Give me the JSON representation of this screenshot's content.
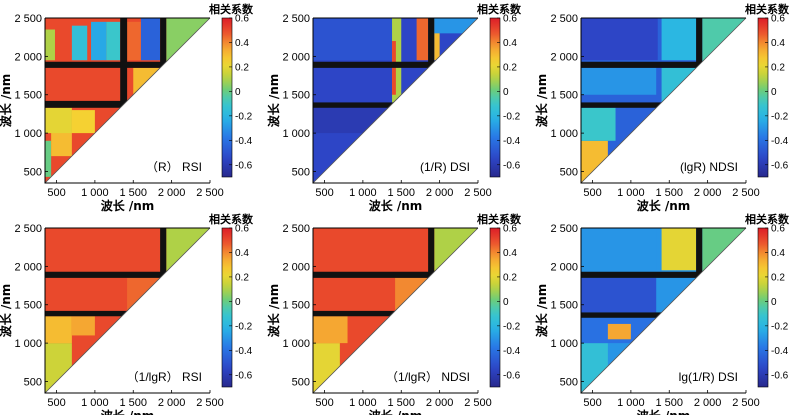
{
  "chart_data": [
    {
      "type": "heatmap",
      "panel_label": "（R） RSI",
      "xlabel": "波长 /nm",
      "ylabel": "波长 /nm",
      "xlim": [
        350,
        2500
      ],
      "ylim": [
        350,
        2500
      ],
      "xticks": [
        "500",
        "1 000",
        "1 500",
        "2 000",
        "2 500"
      ],
      "yticks": [
        "500",
        "1 000",
        "1 500",
        "2 000",
        "2 500"
      ],
      "colorbar": {
        "title": "相关系数",
        "range": [
          -0.7,
          0.6
        ],
        "ticks": [
          "0.6",
          "0.4",
          "0.2",
          "0",
          "-0.2",
          "-0.4",
          "-0.6"
        ]
      },
      "base_value": 0.5,
      "regions": [
        {
          "x": [
            350,
            2500
          ],
          "y": [
            1850,
            1930
          ],
          "value": "black"
        },
        {
          "x": [
            1850,
            1930
          ],
          "y": [
            350,
            2500
          ],
          "value": "black"
        },
        {
          "x": [
            350,
            2500
          ],
          "y": [
            1330,
            1420
          ],
          "value": "black"
        },
        {
          "x": [
            1330,
            1420
          ],
          "y": [
            350,
            2500
          ],
          "value": "black"
        },
        {
          "x": [
            350,
            430
          ],
          "y": [
            430,
            900
          ],
          "value": 0.0
        },
        {
          "x": [
            430,
            700
          ],
          "y": [
            700,
            1300
          ],
          "value": 0.3
        },
        {
          "x": [
            700,
            1000
          ],
          "y": [
            1000,
            1300
          ],
          "value": 0.25
        },
        {
          "x": [
            350,
            700
          ],
          "y": [
            1000,
            1330
          ],
          "value": 0.2
        },
        {
          "x": [
            350,
            700
          ],
          "y": [
            1420,
            1850
          ],
          "value": 0.5
        },
        {
          "x": [
            350,
            480
          ],
          "y": [
            1950,
            2350
          ],
          "value": 0.1
        },
        {
          "x": [
            700,
            900
          ],
          "y": [
            1950,
            2400
          ],
          "value": -0.15
        },
        {
          "x": [
            950,
            1150
          ],
          "y": [
            1950,
            2450
          ],
          "value": -0.25
        },
        {
          "x": [
            1150,
            1330
          ],
          "y": [
            1950,
            2450
          ],
          "value": -0.1
        },
        {
          "x": [
            1420,
            1600
          ],
          "y": [
            1950,
            2450
          ],
          "value": 0.45
        },
        {
          "x": [
            1600,
            1850
          ],
          "y": [
            1950,
            2500
          ],
          "value": -0.45
        },
        {
          "x": [
            1500,
            1850
          ],
          "y": [
            1500,
            1850
          ],
          "value": 0.3
        },
        {
          "x": [
            1930,
            2500
          ],
          "y": [
            1930,
            2500
          ],
          "value": 0.05
        }
      ]
    },
    {
      "type": "heatmap",
      "panel_label": "(1/R) DSI",
      "xlabel": "波长 /nm",
      "ylabel": "波长 /nm",
      "xlim": [
        350,
        2500
      ],
      "ylim": [
        350,
        2500
      ],
      "xticks": [
        "500",
        "1 000",
        "1 500",
        "2 000",
        "2 500"
      ],
      "yticks": [
        "500",
        "1 000",
        "1 500",
        "2 000",
        "2 500"
      ],
      "colorbar": {
        "title": "相关系数",
        "range": [
          -0.7,
          0.6
        ],
        "ticks": [
          "0.6",
          "0.4",
          "0.2",
          "0",
          "-0.2",
          "-0.4",
          "-0.6"
        ]
      },
      "base_value": -0.55,
      "regions": [
        {
          "x": [
            350,
            2500
          ],
          "y": [
            1850,
            1930
          ],
          "value": "black"
        },
        {
          "x": [
            1850,
            1930
          ],
          "y": [
            350,
            2500
          ],
          "value": "black"
        },
        {
          "x": [
            350,
            2500
          ],
          "y": [
            1330,
            1400
          ],
          "value": "black"
        },
        {
          "x": [
            350,
            1400
          ],
          "y": [
            1000,
            1330
          ],
          "value": -0.6
        },
        {
          "x": [
            350,
            1400
          ],
          "y": [
            1950,
            2500
          ],
          "value": -0.5
        },
        {
          "x": [
            1380,
            1500
          ],
          "y": [
            1400,
            2500
          ],
          "value": 0.1
        },
        {
          "x": [
            1380,
            1430
          ],
          "y": [
            1500,
            2200
          ],
          "value": 0.5
        },
        {
          "x": [
            1700,
            1850
          ],
          "y": [
            1950,
            2500
          ],
          "value": 0.45
        },
        {
          "x": [
            1930,
            2000
          ],
          "y": [
            1950,
            2500
          ],
          "value": 0.3
        },
        {
          "x": [
            1930,
            2500
          ],
          "y": [
            2300,
            2500
          ],
          "value": -0.3
        }
      ]
    },
    {
      "type": "heatmap",
      "panel_label": "(lgR) NDSI",
      "xlabel": "波长 /nm",
      "ylabel": "波长 /nm",
      "xlim": [
        350,
        2500
      ],
      "ylim": [
        350,
        2500
      ],
      "xticks": [
        "500",
        "1 000",
        "1 500",
        "2 000",
        "2 500"
      ],
      "yticks": [
        "500",
        "1 000",
        "1 500",
        "2 000",
        "2 500"
      ],
      "colorbar": {
        "title": "相关系数",
        "range": [
          -0.7,
          0.6
        ],
        "ticks": [
          "0.6",
          "0.4",
          "0.2",
          "0",
          "-0.2",
          "-0.4",
          "-0.6"
        ]
      },
      "base_value": -0.45,
      "regions": [
        {
          "x": [
            350,
            2500
          ],
          "y": [
            1850,
            1930
          ],
          "value": "black"
        },
        {
          "x": [
            1850,
            1930
          ],
          "y": [
            350,
            2500
          ],
          "value": "black"
        },
        {
          "x": [
            350,
            2500
          ],
          "y": [
            1330,
            1400
          ],
          "value": "black"
        },
        {
          "x": [
            350,
            700
          ],
          "y": [
            350,
            900
          ],
          "value": 0.3
        },
        {
          "x": [
            350,
            800
          ],
          "y": [
            900,
            1330
          ],
          "value": -0.1
        },
        {
          "x": [
            350,
            1330
          ],
          "y": [
            1500,
            1850
          ],
          "value": -0.3
        },
        {
          "x": [
            1400,
            1850
          ],
          "y": [
            1400,
            1850
          ],
          "value": -0.15
        },
        {
          "x": [
            350,
            1350
          ],
          "y": [
            1950,
            2500
          ],
          "value": -0.55
        },
        {
          "x": [
            1400,
            1850
          ],
          "y": [
            1950,
            2500
          ],
          "value": -0.2
        },
        {
          "x": [
            1930,
            2500
          ],
          "y": [
            1930,
            2500
          ],
          "value": -0.05
        }
      ]
    },
    {
      "type": "heatmap",
      "panel_label": "（1/lgR） RSI",
      "xlabel": "波长 /nm",
      "ylabel": "波长 /nm",
      "xlim": [
        350,
        2500
      ],
      "ylim": [
        350,
        2500
      ],
      "xticks": [
        "500",
        "1 000",
        "1 500",
        "2 000",
        "2 500"
      ],
      "yticks": [
        "500",
        "1 000",
        "1 500",
        "2 000",
        "2 500"
      ],
      "colorbar": {
        "title": "相关系数",
        "range": [
          -0.7,
          0.6
        ],
        "ticks": [
          "0.6",
          "0.4",
          "0.2",
          "0",
          "-0.2",
          "-0.4",
          "-0.6"
        ]
      },
      "base_value": 0.5,
      "regions": [
        {
          "x": [
            350,
            2500
          ],
          "y": [
            1850,
            1930
          ],
          "value": "black"
        },
        {
          "x": [
            1850,
            1930
          ],
          "y": [
            350,
            2500
          ],
          "value": "black"
        },
        {
          "x": [
            350,
            2500
          ],
          "y": [
            1350,
            1420
          ],
          "value": "black"
        },
        {
          "x": [
            350,
            700
          ],
          "y": [
            350,
            1000
          ],
          "value": 0.15
        },
        {
          "x": [
            350,
            700
          ],
          "y": [
            1000,
            1350
          ],
          "value": 0.3
        },
        {
          "x": [
            700,
            1000
          ],
          "y": [
            1100,
            1350
          ],
          "value": 0.35
        },
        {
          "x": [
            1420,
            1850
          ],
          "y": [
            1420,
            1850
          ],
          "value": 0.45
        },
        {
          "x": [
            1930,
            2500
          ],
          "y": [
            1930,
            2500
          ],
          "value": 0.1
        }
      ]
    },
    {
      "type": "heatmap",
      "panel_label": "（1/lgR） NDSI",
      "xlabel": "波长 /nm",
      "ylabel": "波长 /nm",
      "xlim": [
        350,
        2500
      ],
      "ylim": [
        350,
        2500
      ],
      "xticks": [
        "500",
        "1 000",
        "1 500",
        "2 000",
        "2 500"
      ],
      "yticks": [
        "500",
        "1 000",
        "1 500",
        "2 000",
        "2 500"
      ],
      "colorbar": {
        "title": "相关系数",
        "range": [
          -0.7,
          0.6
        ],
        "ticks": [
          "0.6",
          "0.4",
          "0.2",
          "0",
          "-0.2",
          "-0.4",
          "-0.6"
        ]
      },
      "base_value": 0.5,
      "regions": [
        {
          "x": [
            350,
            2500
          ],
          "y": [
            1850,
            1930
          ],
          "value": "black"
        },
        {
          "x": [
            1850,
            1930
          ],
          "y": [
            350,
            2500
          ],
          "value": "black"
        },
        {
          "x": [
            350,
            2500
          ],
          "y": [
            1350,
            1420
          ],
          "value": "black"
        },
        {
          "x": [
            350,
            700
          ],
          "y": [
            350,
            1000
          ],
          "value": 0.2
        },
        {
          "x": [
            350,
            800
          ],
          "y": [
            1000,
            1350
          ],
          "value": 0.35
        },
        {
          "x": [
            1420,
            1850
          ],
          "y": [
            1420,
            1850
          ],
          "value": 0.4
        },
        {
          "x": [
            1930,
            2500
          ],
          "y": [
            1930,
            2500
          ],
          "value": 0.1
        }
      ]
    },
    {
      "type": "heatmap",
      "panel_label": "lg(1/R) DSI",
      "xlabel": "波长 /nm",
      "ylabel": "波长 /nm",
      "xlim": [
        350,
        2500
      ],
      "ylim": [
        350,
        2500
      ],
      "xticks": [
        "500",
        "1 000",
        "1 500",
        "2 000",
        "2 500"
      ],
      "yticks": [
        "500",
        "1 000",
        "1 500",
        "2 000",
        "2 500"
      ],
      "colorbar": {
        "title": "相关系数",
        "range": [
          -0.7,
          0.6
        ],
        "ticks": [
          "0.6",
          "0.4",
          "0.2",
          "0",
          "-0.2",
          "-0.4",
          "-0.6"
        ]
      },
      "base_value": -0.3,
      "regions": [
        {
          "x": [
            350,
            2500
          ],
          "y": [
            1850,
            1930
          ],
          "value": "black"
        },
        {
          "x": [
            1850,
            1930
          ],
          "y": [
            350,
            2500
          ],
          "value": "black"
        },
        {
          "x": [
            350,
            2500
          ],
          "y": [
            1330,
            1400
          ],
          "value": "black"
        },
        {
          "x": [
            350,
            700
          ],
          "y": [
            350,
            1000
          ],
          "value": -0.15
        },
        {
          "x": [
            350,
            1330
          ],
          "y": [
            1000,
            1330
          ],
          "value": -0.4
        },
        {
          "x": [
            700,
            1000
          ],
          "y": [
            1050,
            1250
          ],
          "value": 0.35
        },
        {
          "x": [
            350,
            1330
          ],
          "y": [
            1400,
            1850
          ],
          "value": -0.5
        },
        {
          "x": [
            350,
            1330
          ],
          "y": [
            1950,
            2500
          ],
          "value": -0.3
        },
        {
          "x": [
            1400,
            1850
          ],
          "y": [
            1950,
            2500
          ],
          "value": 0.2
        },
        {
          "x": [
            1930,
            2500
          ],
          "y": [
            1930,
            2500
          ],
          "value": 0.0
        }
      ]
    }
  ]
}
